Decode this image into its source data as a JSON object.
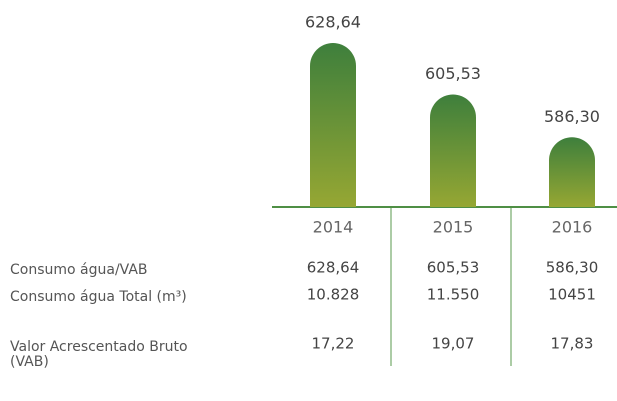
{
  "chart_data": {
    "type": "bar",
    "categories": [
      "2014",
      "2015",
      "2016"
    ],
    "values": [
      628.64,
      605.53,
      586.3
    ],
    "value_labels": [
      "628,64",
      "605,53",
      "586,30"
    ],
    "color": [
      "#3e7f3c",
      "#96a733"
    ],
    "ylim": [
      555,
      632
    ]
  },
  "table": {
    "rows": [
      {
        "label": "Consumo água/VAB",
        "values": [
          "628,64",
          "605,53",
          "586,30"
        ]
      },
      {
        "label": "Consumo água Total (m³)",
        "values": [
          "10.828",
          "11.550",
          "10451"
        ]
      },
      {
        "label": "Valor Acrescentado Bruto (VAB)",
        "values": [
          "17,22",
          "19,07",
          "17,83"
        ]
      }
    ]
  }
}
